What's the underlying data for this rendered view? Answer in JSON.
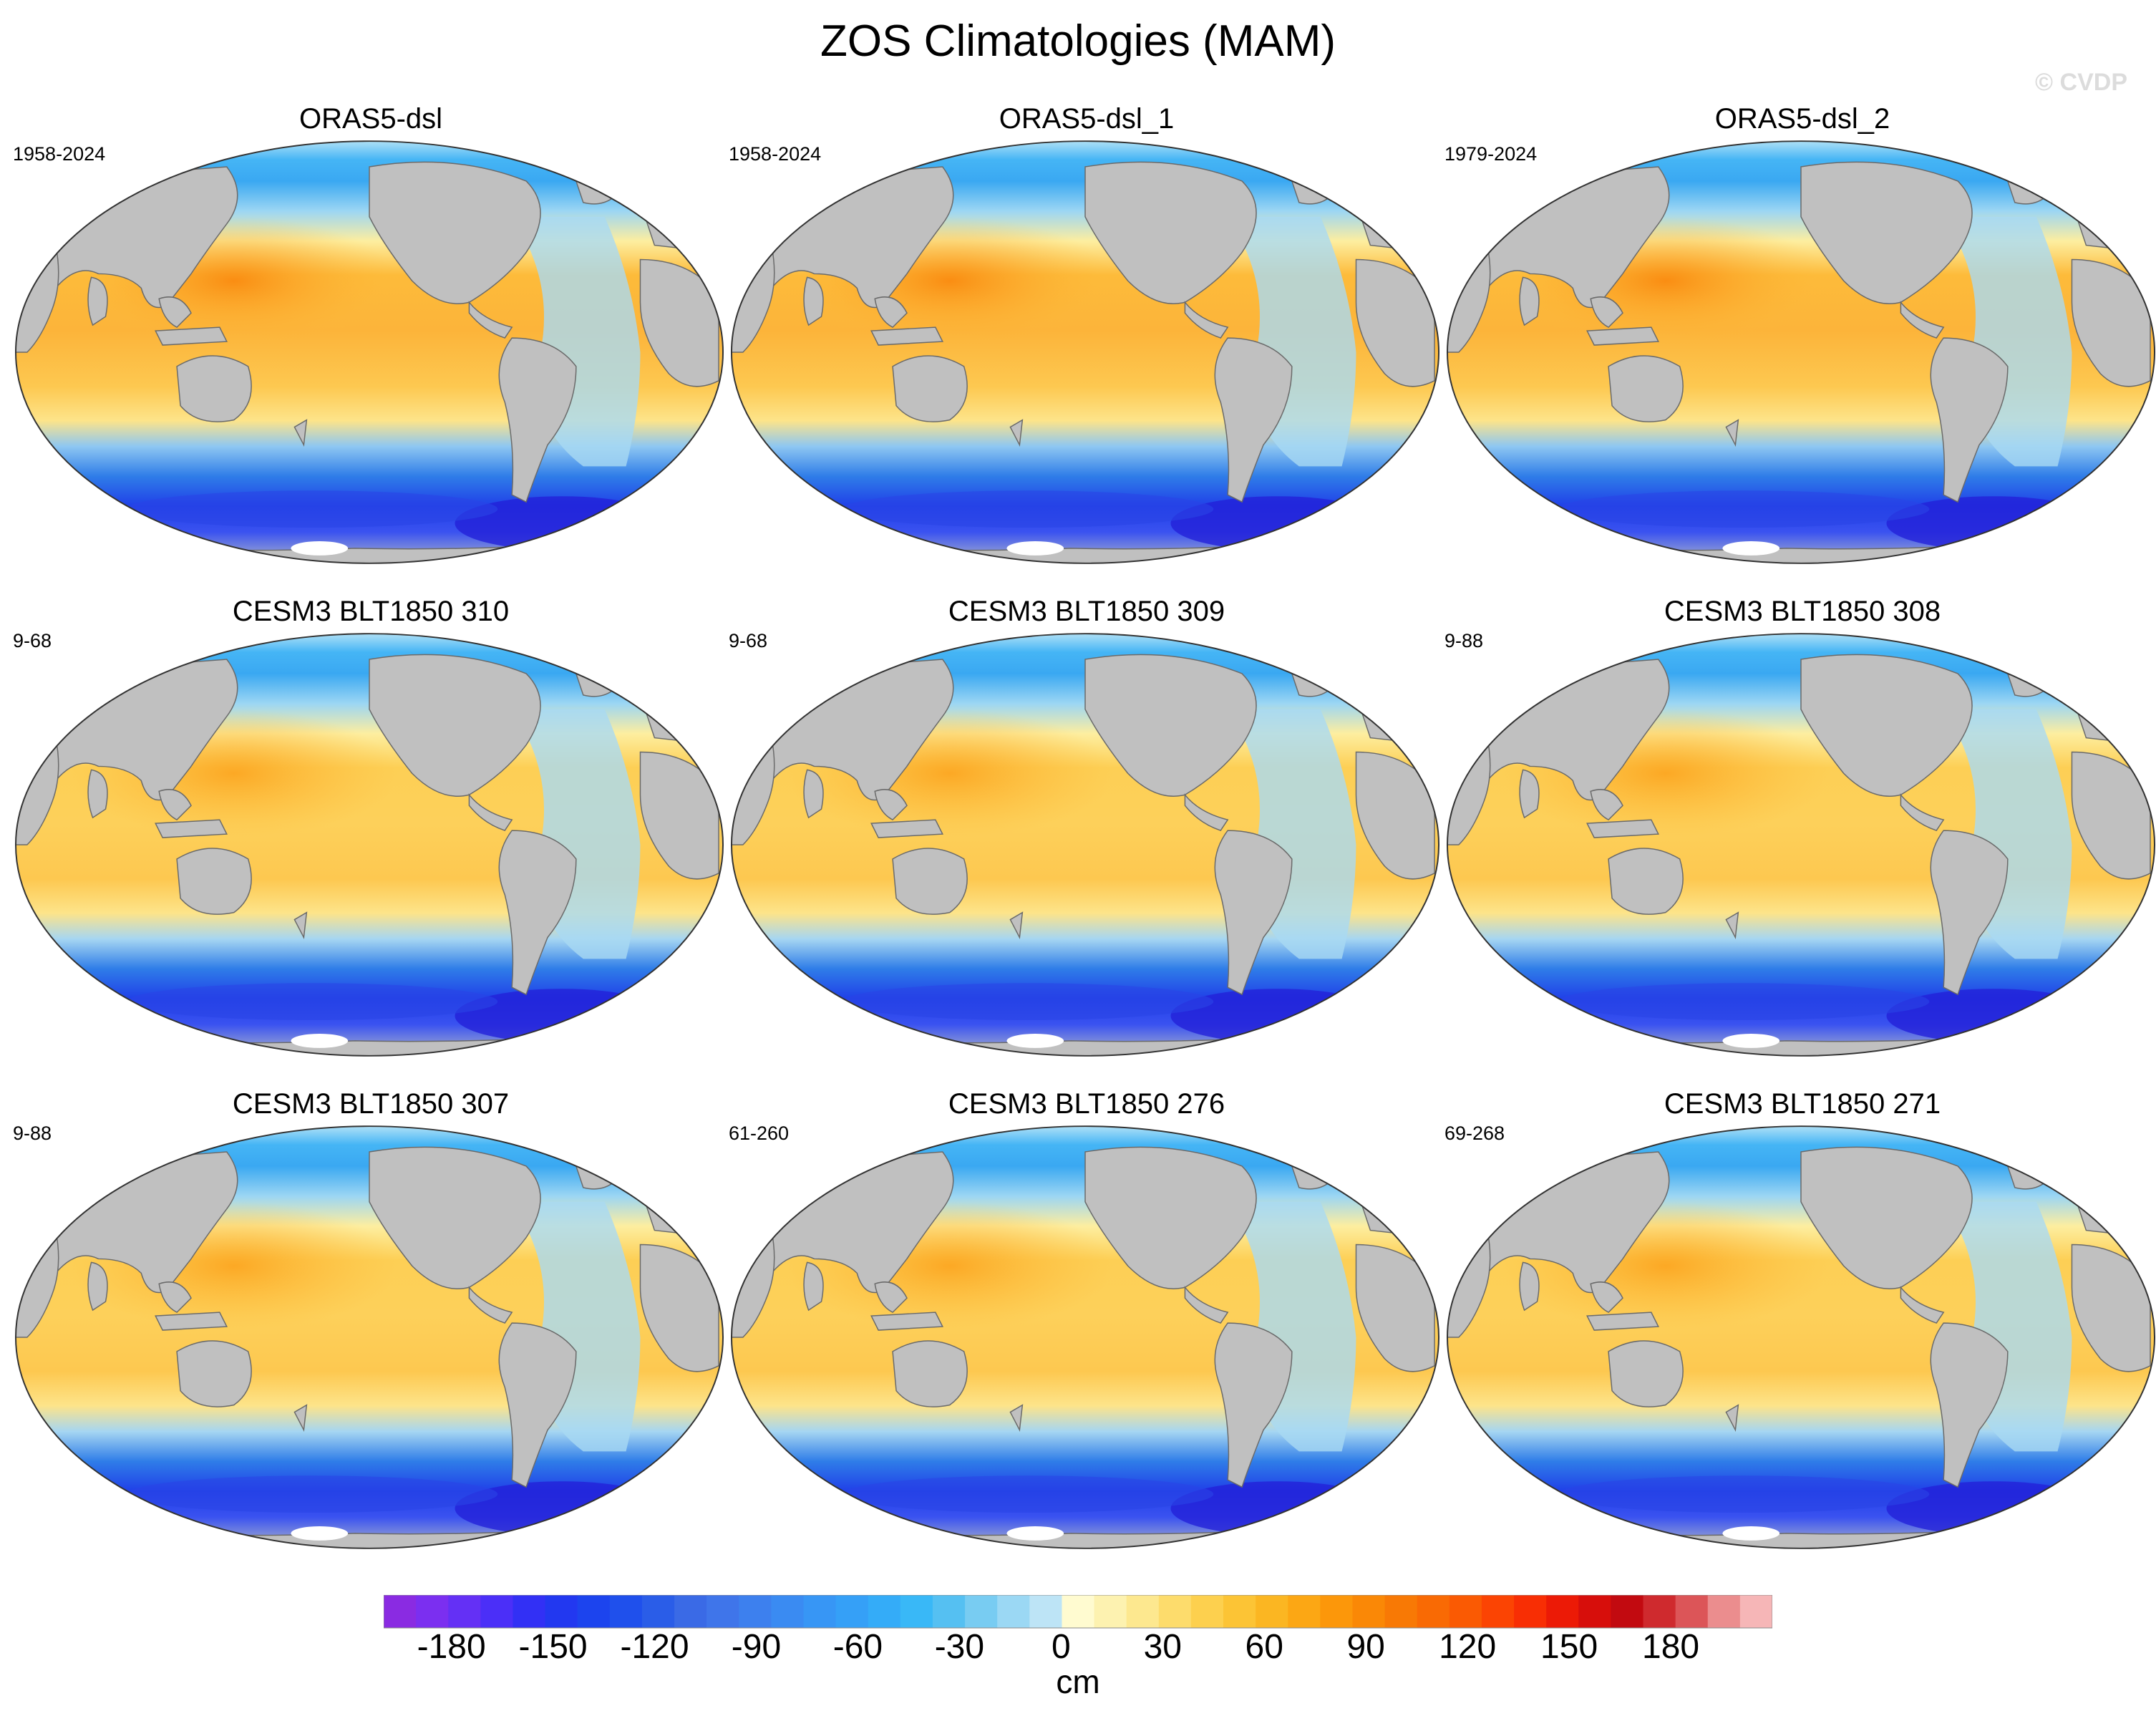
{
  "figure": {
    "title": "ZOS Climatologies (MAM)",
    "watermark": "© CVDP",
    "units": "cm"
  },
  "panels": [
    {
      "title": "ORAS5-dsl",
      "years": "1958-2024",
      "pacific_peak": 1.0,
      "southern_depth": 1.0
    },
    {
      "title": "ORAS5-dsl_1",
      "years": "1958-2024",
      "pacific_peak": 1.0,
      "southern_depth": 1.0
    },
    {
      "title": "ORAS5-dsl_2",
      "years": "1979-2024",
      "pacific_peak": 1.0,
      "southern_depth": 1.0
    },
    {
      "title": "CESM3 BLT1850 310",
      "years": "9-68",
      "pacific_peak": 0.8,
      "southern_depth": 0.9
    },
    {
      "title": "CESM3 BLT1850 309",
      "years": "9-68",
      "pacific_peak": 0.8,
      "southern_depth": 0.9
    },
    {
      "title": "CESM3 BLT1850 308",
      "years": "9-88",
      "pacific_peak": 0.8,
      "southern_depth": 0.9
    },
    {
      "title": "CESM3 BLT1850 307",
      "years": "9-88",
      "pacific_peak": 0.75,
      "southern_depth": 0.9
    },
    {
      "title": "CESM3 BLT1850 276",
      "years": "61-260",
      "pacific_peak": 0.75,
      "southern_depth": 0.9
    },
    {
      "title": "CESM3 BLT1850 271",
      "years": "69-268",
      "pacific_peak": 0.78,
      "southern_depth": 0.9
    }
  ],
  "colorbar": {
    "tick_labels": [
      "-180",
      "-150",
      "-120",
      "-90",
      "-60",
      "-30",
      "0",
      "30",
      "60",
      "90",
      "120",
      "150",
      "180"
    ],
    "tick_values": [
      -180,
      -150,
      -120,
      -90,
      -60,
      -30,
      0,
      30,
      60,
      90,
      120,
      150,
      180
    ],
    "min": -200,
    "max": 210,
    "step": 10,
    "colors": [
      "#8a2be2",
      "#7b2ff0",
      "#6430f5",
      "#4b2ff8",
      "#3230f5",
      "#2238f0",
      "#1c44ee",
      "#1f50ec",
      "#2a5de8",
      "#3a6ae6",
      "#3f75ea",
      "#3d80ee",
      "#3a8bf2",
      "#3796f5",
      "#35a0f7",
      "#34acf8",
      "#39b8f7",
      "#55c0f2",
      "#78ccf2",
      "#9bd8f4",
      "#bde4f6",
      "#fffbd0",
      "#fdf2b0",
      "#fde88f",
      "#fddc6c",
      "#fdd04e",
      "#fcc435",
      "#fbb622",
      "#fca714",
      "#fc970a",
      "#fa8806",
      "#f87905",
      "#f96a04",
      "#fa5a03",
      "#fb4403",
      "#f82e04",
      "#ec1a06",
      "#d70e0b",
      "#c20a10",
      "#cf2a2e",
      "#dc5558",
      "#eb8d8e",
      "#f6b6b7"
    ]
  }
}
